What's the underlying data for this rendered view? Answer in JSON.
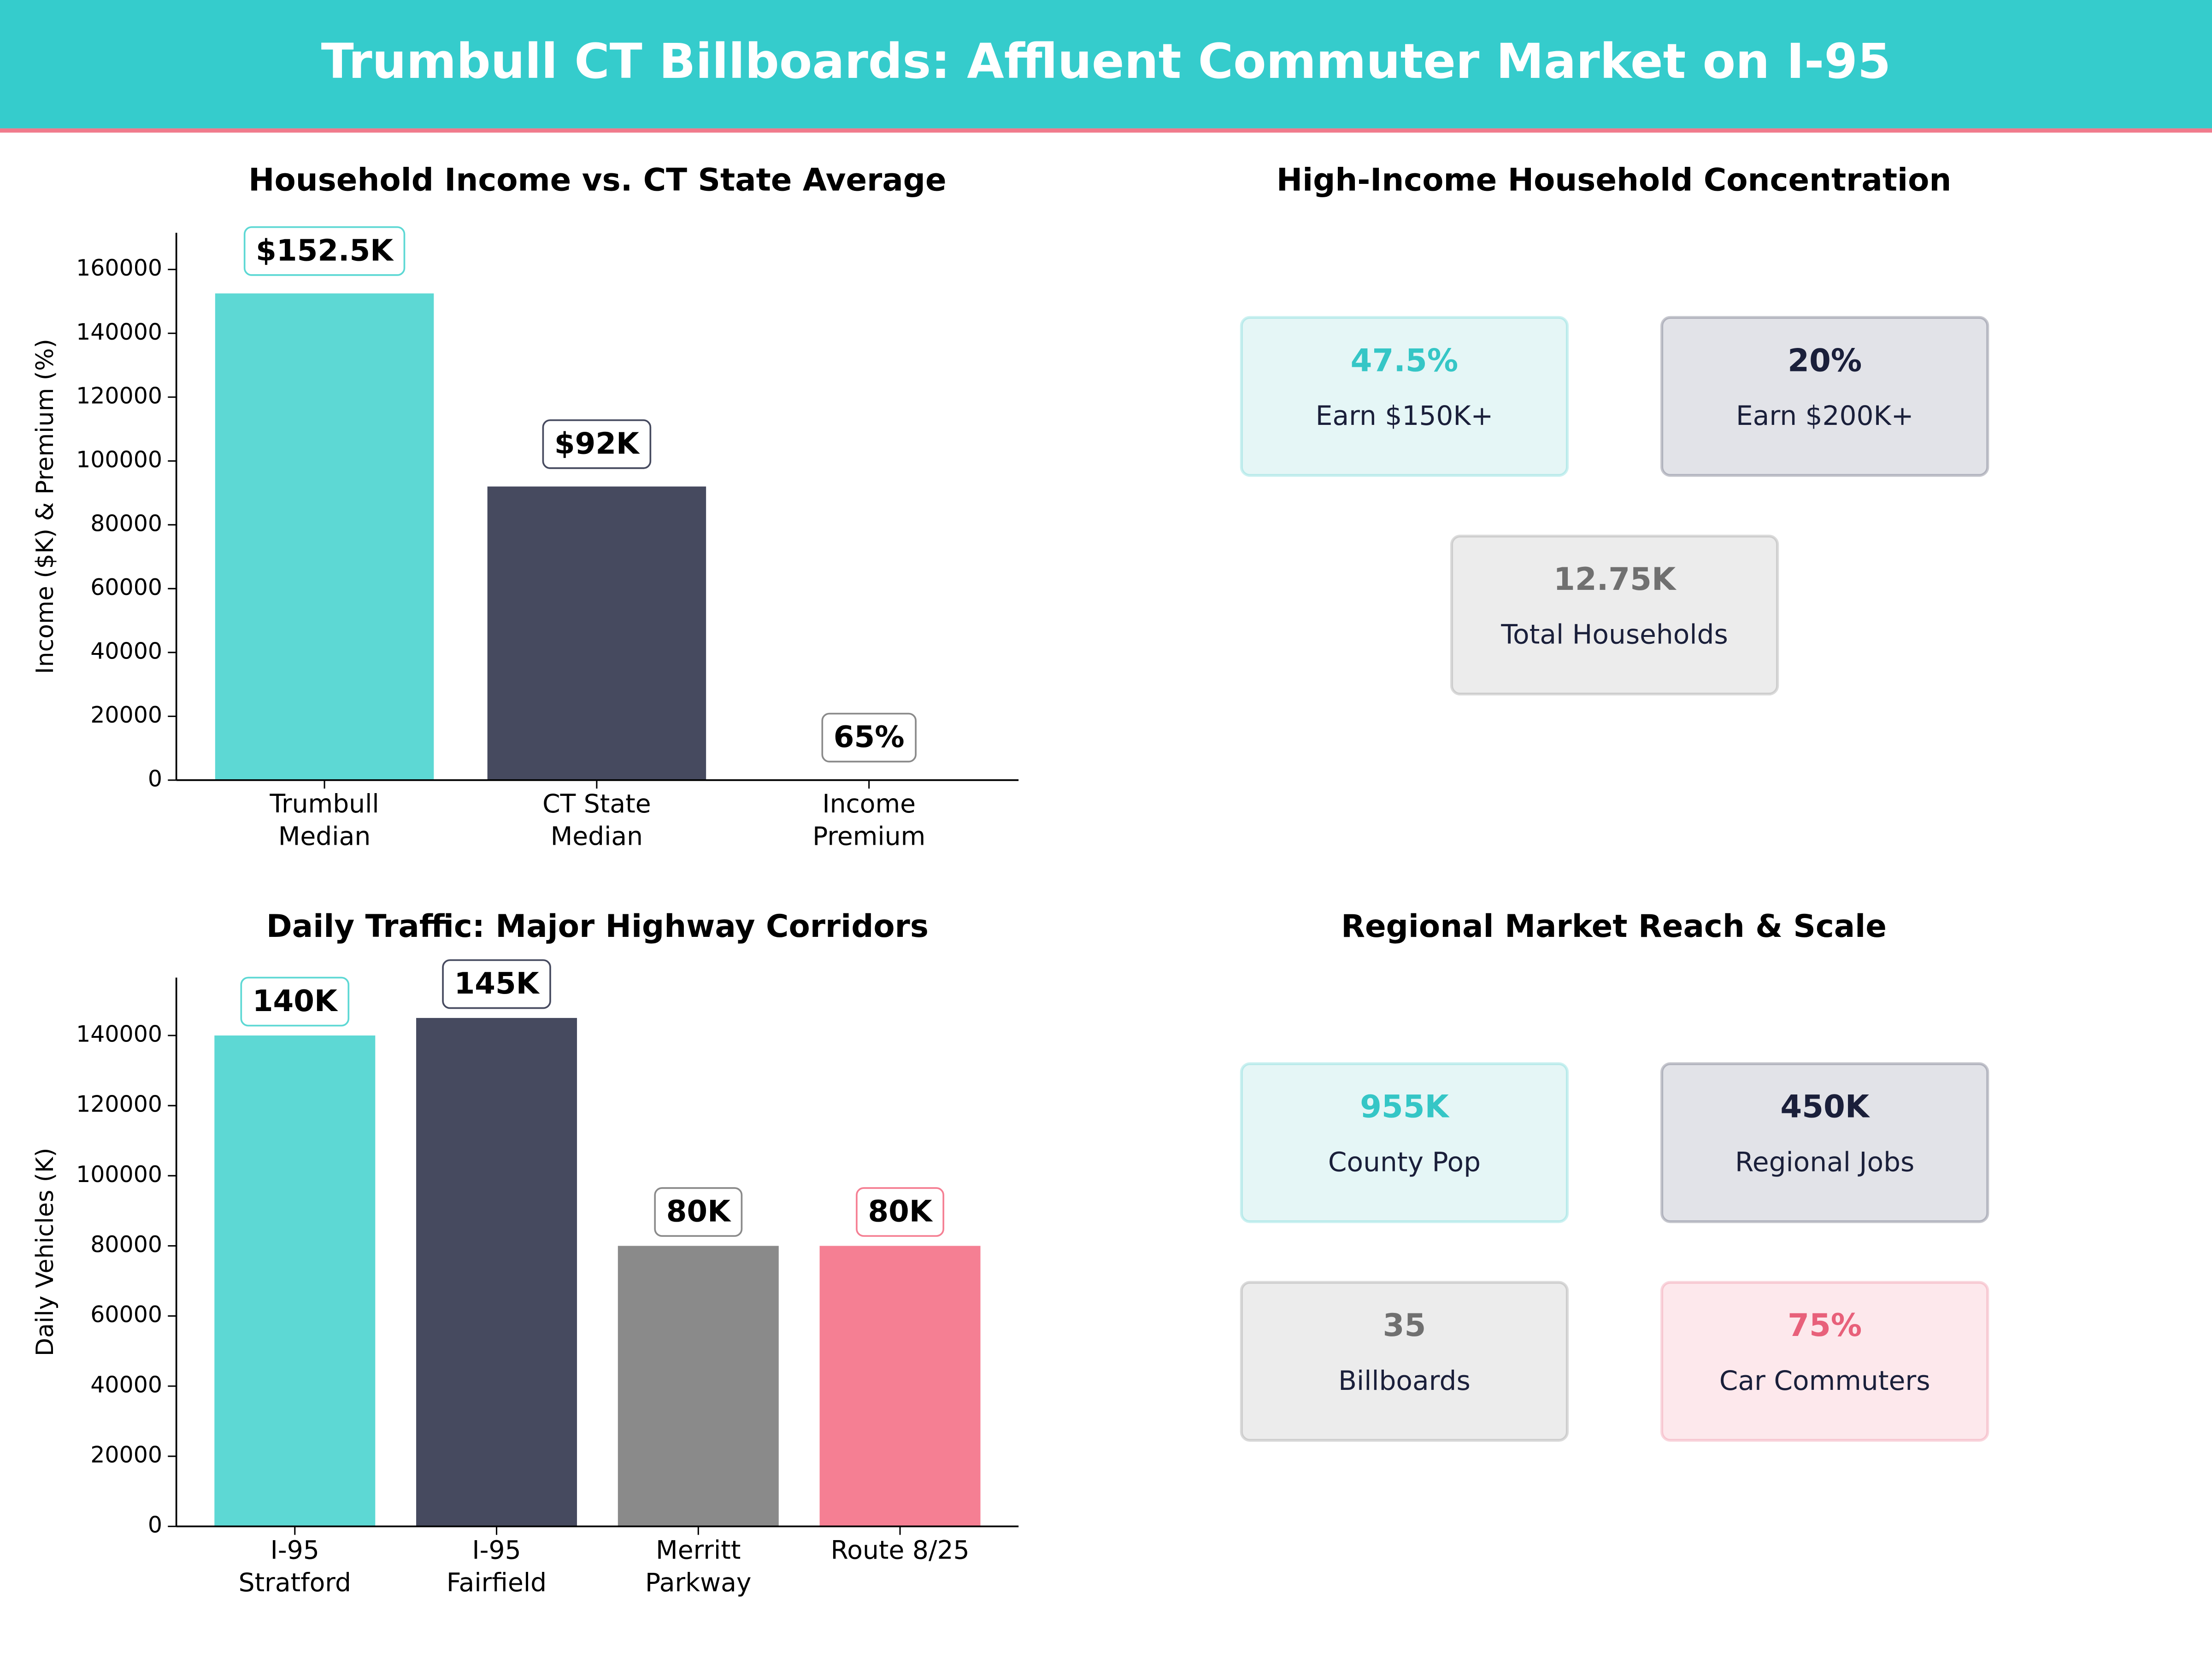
{
  "header": {
    "title": "Trumbull CT Billboards: Affluent Commuter Market on I-95"
  },
  "charts": [
    {
      "type": "bar",
      "title": "Household Income vs. CT State Average",
      "ylabel": "Income ($K) & Premium (%)",
      "categories": [
        "Trumbull\nMedian",
        "CT State\nMedian",
        "Income\nPremium"
      ],
      "values": [
        152500,
        92000,
        65
      ],
      "value_labels": [
        "$152.5K",
        "$92K",
        "65%"
      ],
      "colors": [
        "#5dd8d4",
        "#464a5f",
        "#8a8a8a"
      ],
      "ylim": [
        0,
        171500
      ],
      "yticks": [
        0,
        20000,
        40000,
        60000,
        80000,
        100000,
        120000,
        140000,
        160000
      ]
    },
    {
      "type": "bar",
      "title": "Daily Traffic: Major Highway Corridors",
      "ylabel": "Daily Vehicles (K)",
      "categories": [
        "I-95\nStratford",
        "I-95\nFairfield",
        "Merritt\nParkway",
        "Route 8/25"
      ],
      "values": [
        140000,
        145000,
        80000,
        80000
      ],
      "value_labels": [
        "140K",
        "145K",
        "80K",
        "80K"
      ],
      "colors": [
        "#5dd8d4",
        "#464a5f",
        "#8a8a8a",
        "#f57f93"
      ],
      "ylim": [
        0,
        156500
      ],
      "yticks": [
        0,
        20000,
        40000,
        60000,
        80000,
        100000,
        120000,
        140000
      ]
    }
  ],
  "panels": [
    {
      "title": "High-Income Household Concentration",
      "cards": [
        {
          "value": "47.5%",
          "label": "Earn $150K+",
          "color": "#35c6c6",
          "background": "#e5f6f6"
        },
        {
          "value": "20%",
          "label": "Earn $200K+",
          "color": "#1a1f3a",
          "background": "#e2e3e8"
        },
        {
          "value": "12.75K",
          "label": "Total Households",
          "color": "#707070",
          "background": "#ececec"
        }
      ]
    },
    {
      "title": "Regional Market Reach & Scale",
      "cards": [
        {
          "value": "955K",
          "label": "County Pop",
          "color": "#35c6c6",
          "background": "#e5f6f6"
        },
        {
          "value": "450K",
          "label": "Regional Jobs",
          "color": "#1a1f3a",
          "background": "#e2e3e8"
        },
        {
          "value": "35",
          "label": "Billboards",
          "color": "#707070",
          "background": "#ececec"
        },
        {
          "value": "75%",
          "label": "Car Commuters",
          "color": "#e8607a",
          "background": "#fde8ec"
        }
      ]
    }
  ]
}
